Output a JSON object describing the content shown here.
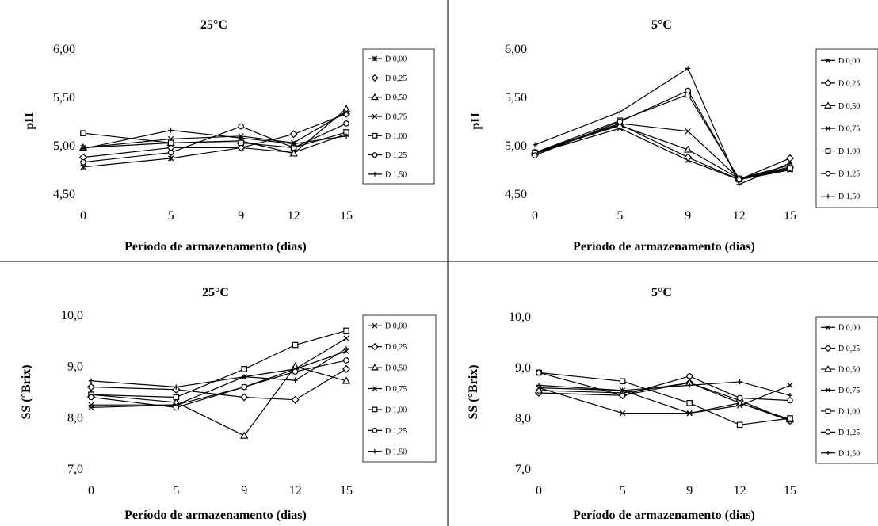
{
  "colors": {
    "line": "#000000",
    "background": "#ffffff",
    "divider": "#000000"
  },
  "chart_data": [
    {
      "type": "line",
      "title": "25°C",
      "xlabel": "Período de armazenamento (dias)",
      "ylabel": "pH",
      "x": [
        0,
        5,
        9,
        12,
        15
      ],
      "ylim": [
        4.5,
        6.0
      ],
      "yticks": [
        "4,50",
        "5,00",
        "5,50",
        "6,00"
      ],
      "legend_position": "right",
      "series": [
        {
          "name": "D 0,00",
          "marker": "asterisk",
          "values": [
            4.78,
            4.87,
            4.98,
            4.93,
            5.12
          ]
        },
        {
          "name": "D 0,25",
          "marker": "diamond",
          "values": [
            4.88,
            4.98,
            4.98,
            5.12,
            5.33
          ]
        },
        {
          "name": "D 0,50",
          "marker": "triangle",
          "values": [
            4.98,
            5.03,
            5.05,
            4.92,
            5.38
          ]
        },
        {
          "name": "D 0,75",
          "marker": "x",
          "values": [
            4.98,
            5.07,
            5.1,
            5.03,
            5.35
          ]
        },
        {
          "name": "D 1,00",
          "marker": "square",
          "values": [
            5.13,
            5.03,
            5.03,
            4.98,
            5.14
          ]
        },
        {
          "name": "D 1,25",
          "marker": "circle",
          "values": [
            4.83,
            4.93,
            5.2,
            4.98,
            5.23
          ]
        },
        {
          "name": "D 1,50",
          "marker": "plus",
          "values": [
            4.97,
            5.16,
            5.08,
            5.02,
            5.1
          ]
        }
      ]
    },
    {
      "type": "line",
      "title": "5°C",
      "xlabel": "Período de armazenamento (dias)",
      "ylabel": "pH",
      "x": [
        0,
        5,
        9,
        12,
        15
      ],
      "ylim": [
        4.5,
        6.0
      ],
      "yticks": [
        "4,50",
        "5,00",
        "5,50",
        "6,00"
      ],
      "legend_position": "right",
      "series": [
        {
          "name": "D 0,00",
          "marker": "x",
          "values": [
            4.92,
            5.18,
            4.85,
            4.65,
            4.75
          ]
        },
        {
          "name": "D 0,25",
          "marker": "diamond",
          "values": [
            4.92,
            5.22,
            4.88,
            4.65,
            4.87
          ]
        },
        {
          "name": "D 0,50",
          "marker": "triangle",
          "values": [
            4.93,
            5.21,
            4.96,
            4.66,
            4.8
          ]
        },
        {
          "name": "D 0,75",
          "marker": "x",
          "values": [
            4.93,
            5.23,
            5.15,
            4.66,
            4.78
          ]
        },
        {
          "name": "D 1,00",
          "marker": "square",
          "values": [
            4.93,
            5.26,
            5.53,
            4.66,
            4.76
          ]
        },
        {
          "name": "D 1,25",
          "marker": "circle",
          "values": [
            4.9,
            5.25,
            5.57,
            4.65,
            4.77
          ]
        },
        {
          "name": "D 1,50",
          "marker": "plus",
          "values": [
            5.01,
            5.35,
            5.8,
            4.6,
            4.82
          ]
        }
      ]
    },
    {
      "type": "line",
      "title": "25°C",
      "xlabel": "Período de armazenamento (dias)",
      "ylabel": "SS (°Brix)",
      "x": [
        0,
        5,
        9,
        12,
        15
      ],
      "ylim": [
        7.0,
        10.0
      ],
      "yticks": [
        "7,0",
        "8,0",
        "9,0",
        "10,0"
      ],
      "legend_position": "right",
      "series": [
        {
          "name": "D 0,00",
          "marker": "x",
          "values": [
            8.2,
            8.25,
            8.8,
            8.95,
            9.55
          ]
        },
        {
          "name": "D 0,25",
          "marker": "diamond",
          "values": [
            8.6,
            8.55,
            8.4,
            8.35,
            8.95
          ]
        },
        {
          "name": "D 0,50",
          "marker": "triangle",
          "values": [
            8.45,
            8.3,
            7.65,
            9.0,
            8.72
          ]
        },
        {
          "name": "D 0,75",
          "marker": "x",
          "values": [
            8.25,
            8.25,
            8.6,
            8.95,
            9.3
          ]
        },
        {
          "name": "D 1,00",
          "marker": "square",
          "values": [
            8.45,
            8.4,
            8.95,
            9.42,
            9.7
          ]
        },
        {
          "name": "D 1,25",
          "marker": "circle",
          "values": [
            8.4,
            8.2,
            8.6,
            8.9,
            9.12
          ]
        },
        {
          "name": "D 1,50",
          "marker": "plus",
          "values": [
            8.72,
            8.6,
            8.8,
            8.73,
            9.35
          ]
        }
      ]
    },
    {
      "type": "line",
      "title": "5°C",
      "xlabel": "Período de armazenamento (dias)",
      "ylabel": "SS (°Brix)",
      "x": [
        0,
        5,
        9,
        12,
        15
      ],
      "ylim": [
        7.0,
        10.0
      ],
      "yticks": [
        "7,0",
        "8,0",
        "9,0",
        "10,0"
      ],
      "legend_position": "right",
      "series": [
        {
          "name": "D 0,00",
          "marker": "x",
          "values": [
            8.6,
            8.1,
            8.1,
            8.3,
            7.95
          ]
        },
        {
          "name": "D 0,25",
          "marker": "diamond",
          "values": [
            8.5,
            8.45,
            8.7,
            8.35,
            7.95
          ]
        },
        {
          "name": "D 0,50",
          "marker": "triangle",
          "values": [
            8.55,
            8.5,
            8.7,
            8.3,
            7.98
          ]
        },
        {
          "name": "D 0,75",
          "marker": "x",
          "values": [
            8.6,
            8.55,
            8.1,
            8.25,
            8.65
          ]
        },
        {
          "name": "D 1,00",
          "marker": "square",
          "values": [
            8.9,
            8.73,
            8.3,
            7.87,
            8.0
          ]
        },
        {
          "name": "D 1,25",
          "marker": "circle",
          "values": [
            8.9,
            8.45,
            8.83,
            8.4,
            8.35
          ]
        },
        {
          "name": "D 1,50",
          "marker": "plus",
          "values": [
            8.65,
            8.55,
            8.65,
            8.72,
            8.45
          ]
        }
      ]
    }
  ]
}
